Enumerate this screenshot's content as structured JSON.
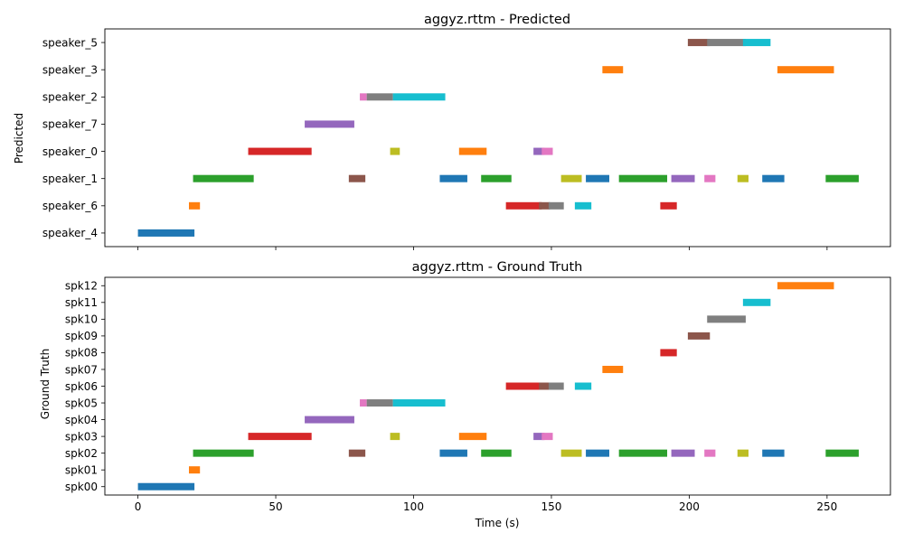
{
  "chart_data": [
    {
      "type": "bar",
      "title": "aggyz.rttm - Predicted",
      "xlabel": "",
      "ylabel": "Predicted",
      "xlim": [
        -12,
        273
      ],
      "xticks": [
        0,
        50,
        100,
        150,
        200,
        250
      ],
      "show_xticklabels": false,
      "categories": [
        "speaker_4",
        "speaker_6",
        "speaker_1",
        "speaker_0",
        "speaker_7",
        "speaker_2",
        "speaker_3",
        "speaker_5"
      ],
      "segments": [
        {
          "row": "speaker_4",
          "start": 0,
          "end": 20.5,
          "color": "#1f77b4"
        },
        {
          "row": "speaker_6",
          "start": 18.5,
          "end": 22.5,
          "color": "#ff7f0e"
        },
        {
          "row": "speaker_1",
          "start": 20,
          "end": 42,
          "color": "#2ca02c"
        },
        {
          "row": "speaker_0",
          "start": 40,
          "end": 63,
          "color": "#d62728"
        },
        {
          "row": "speaker_7",
          "start": 60.5,
          "end": 78.5,
          "color": "#9467bd"
        },
        {
          "row": "speaker_1",
          "start": 76.5,
          "end": 82.5,
          "color": "#8c564b"
        },
        {
          "row": "speaker_2",
          "start": 80.5,
          "end": 83,
          "color": "#e377c2"
        },
        {
          "row": "speaker_2",
          "start": 83,
          "end": 92.5,
          "color": "#7f7f7f"
        },
        {
          "row": "speaker_0",
          "start": 91.5,
          "end": 95,
          "color": "#bcbd22"
        },
        {
          "row": "speaker_2",
          "start": 92.5,
          "end": 111.5,
          "color": "#17becf"
        },
        {
          "row": "speaker_1",
          "start": 109.5,
          "end": 119.5,
          "color": "#1f77b4"
        },
        {
          "row": "speaker_0",
          "start": 116.5,
          "end": 126.5,
          "color": "#ff7f0e"
        },
        {
          "row": "speaker_1",
          "start": 124.5,
          "end": 135.5,
          "color": "#2ca02c"
        },
        {
          "row": "speaker_6",
          "start": 133.5,
          "end": 146.5,
          "color": "#d62728"
        },
        {
          "row": "speaker_0",
          "start": 143.5,
          "end": 147.5,
          "color": "#9467bd"
        },
        {
          "row": "speaker_6",
          "start": 145.5,
          "end": 149.5,
          "color": "#8c564b"
        },
        {
          "row": "speaker_0",
          "start": 146.5,
          "end": 150.5,
          "color": "#e377c2"
        },
        {
          "row": "speaker_6",
          "start": 149,
          "end": 154.5,
          "color": "#7f7f7f"
        },
        {
          "row": "speaker_1",
          "start": 153.5,
          "end": 161,
          "color": "#bcbd22"
        },
        {
          "row": "speaker_6",
          "start": 158.5,
          "end": 164.5,
          "color": "#17becf"
        },
        {
          "row": "speaker_1",
          "start": 162.5,
          "end": 171,
          "color": "#1f77b4"
        },
        {
          "row": "speaker_3",
          "start": 168.5,
          "end": 176,
          "color": "#ff7f0e"
        },
        {
          "row": "speaker_1",
          "start": 174.5,
          "end": 192,
          "color": "#2ca02c"
        },
        {
          "row": "speaker_6",
          "start": 189.5,
          "end": 195.5,
          "color": "#d62728"
        },
        {
          "row": "speaker_1",
          "start": 193.5,
          "end": 202,
          "color": "#9467bd"
        },
        {
          "row": "speaker_5",
          "start": 199.5,
          "end": 207.5,
          "color": "#8c564b"
        },
        {
          "row": "speaker_1",
          "start": 205.5,
          "end": 209.5,
          "color": "#e377c2"
        },
        {
          "row": "speaker_5",
          "start": 206.5,
          "end": 220.5,
          "color": "#7f7f7f"
        },
        {
          "row": "speaker_1",
          "start": 217.5,
          "end": 221.5,
          "color": "#bcbd22"
        },
        {
          "row": "speaker_5",
          "start": 219.5,
          "end": 229.5,
          "color": "#17becf"
        },
        {
          "row": "speaker_1",
          "start": 226.5,
          "end": 234.5,
          "color": "#1f77b4"
        },
        {
          "row": "speaker_3",
          "start": 232,
          "end": 252.5,
          "color": "#ff7f0e"
        },
        {
          "row": "speaker_1",
          "start": 249.5,
          "end": 261.5,
          "color": "#2ca02c"
        }
      ]
    },
    {
      "type": "bar",
      "title": "aggyz.rttm - Ground Truth",
      "xlabel": "Time (s)",
      "ylabel": "Ground Truth",
      "xlim": [
        -12,
        273
      ],
      "xticks": [
        0,
        50,
        100,
        150,
        200,
        250
      ],
      "show_xticklabels": true,
      "categories": [
        "spk00",
        "spk01",
        "spk02",
        "spk03",
        "spk04",
        "spk05",
        "spk06",
        "spk07",
        "spk08",
        "spk09",
        "spk10",
        "spk11",
        "spk12"
      ],
      "segments": [
        {
          "row": "spk00",
          "start": 0,
          "end": 20.5,
          "color": "#1f77b4"
        },
        {
          "row": "spk01",
          "start": 18.5,
          "end": 22.5,
          "color": "#ff7f0e"
        },
        {
          "row": "spk02",
          "start": 20,
          "end": 42,
          "color": "#2ca02c"
        },
        {
          "row": "spk03",
          "start": 40,
          "end": 63,
          "color": "#d62728"
        },
        {
          "row": "spk04",
          "start": 60.5,
          "end": 78.5,
          "color": "#9467bd"
        },
        {
          "row": "spk02",
          "start": 76.5,
          "end": 82.5,
          "color": "#8c564b"
        },
        {
          "row": "spk05",
          "start": 80.5,
          "end": 83,
          "color": "#e377c2"
        },
        {
          "row": "spk05",
          "start": 83,
          "end": 92.5,
          "color": "#7f7f7f"
        },
        {
          "row": "spk03",
          "start": 91.5,
          "end": 95,
          "color": "#bcbd22"
        },
        {
          "row": "spk05",
          "start": 92.5,
          "end": 111.5,
          "color": "#17becf"
        },
        {
          "row": "spk02",
          "start": 109.5,
          "end": 119.5,
          "color": "#1f77b4"
        },
        {
          "row": "spk03",
          "start": 116.5,
          "end": 126.5,
          "color": "#ff7f0e"
        },
        {
          "row": "spk02",
          "start": 124.5,
          "end": 135.5,
          "color": "#2ca02c"
        },
        {
          "row": "spk06",
          "start": 133.5,
          "end": 146.5,
          "color": "#d62728"
        },
        {
          "row": "spk03",
          "start": 143.5,
          "end": 147.5,
          "color": "#9467bd"
        },
        {
          "row": "spk06",
          "start": 145.5,
          "end": 149.5,
          "color": "#8c564b"
        },
        {
          "row": "spk03",
          "start": 146.5,
          "end": 150.5,
          "color": "#e377c2"
        },
        {
          "row": "spk06",
          "start": 149,
          "end": 154.5,
          "color": "#7f7f7f"
        },
        {
          "row": "spk02",
          "start": 153.5,
          "end": 161,
          "color": "#bcbd22"
        },
        {
          "row": "spk06",
          "start": 158.5,
          "end": 164.5,
          "color": "#17becf"
        },
        {
          "row": "spk02",
          "start": 162.5,
          "end": 171,
          "color": "#1f77b4"
        },
        {
          "row": "spk07",
          "start": 168.5,
          "end": 176,
          "color": "#ff7f0e"
        },
        {
          "row": "spk02",
          "start": 174.5,
          "end": 192,
          "color": "#2ca02c"
        },
        {
          "row": "spk08",
          "start": 189.5,
          "end": 195.5,
          "color": "#d62728"
        },
        {
          "row": "spk02",
          "start": 193.5,
          "end": 202,
          "color": "#9467bd"
        },
        {
          "row": "spk09",
          "start": 199.5,
          "end": 207.5,
          "color": "#8c564b"
        },
        {
          "row": "spk02",
          "start": 205.5,
          "end": 209.5,
          "color": "#e377c2"
        },
        {
          "row": "spk10",
          "start": 206.5,
          "end": 220.5,
          "color": "#7f7f7f"
        },
        {
          "row": "spk02",
          "start": 217.5,
          "end": 221.5,
          "color": "#bcbd22"
        },
        {
          "row": "spk11",
          "start": 219.5,
          "end": 229.5,
          "color": "#17becf"
        },
        {
          "row": "spk02",
          "start": 226.5,
          "end": 234.5,
          "color": "#1f77b4"
        },
        {
          "row": "spk12",
          "start": 232,
          "end": 252.5,
          "color": "#ff7f0e"
        },
        {
          "row": "spk02",
          "start": 249.5,
          "end": 261.5,
          "color": "#2ca02c"
        }
      ]
    }
  ]
}
